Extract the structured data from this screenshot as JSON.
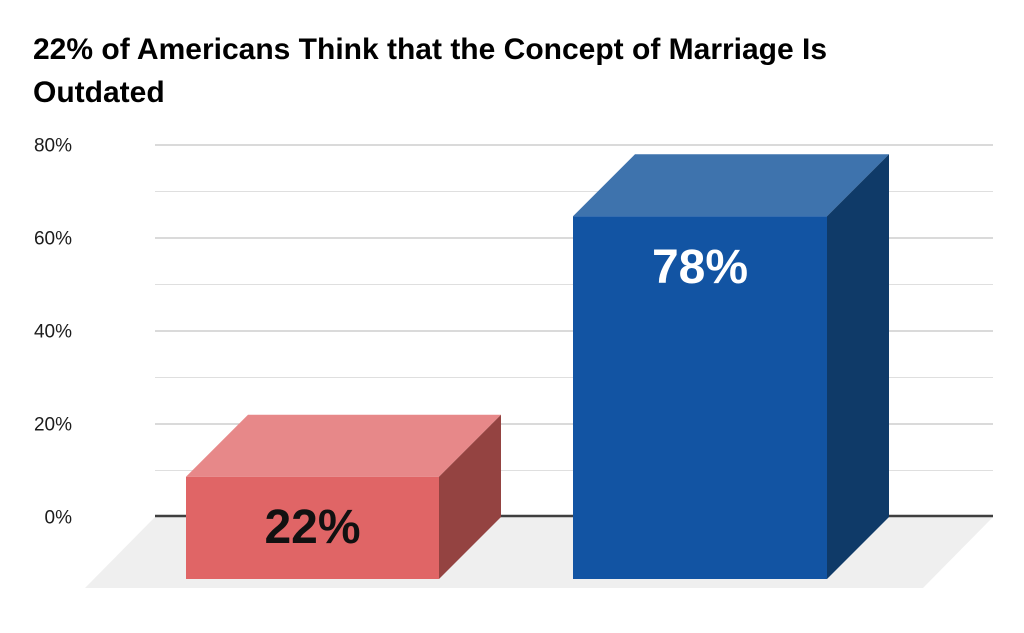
{
  "page": {
    "background": "#ffffff"
  },
  "title": {
    "text": "22% of Americans Think that the Concept of Marriage Is Outdated",
    "line1": "22% of Americans Think that the Concept of Marriage Is",
    "line2": "Outdated"
  },
  "chart_data": {
    "type": "bar",
    "style": "3d-box-columns",
    "title": "22% of Americans Think that the Concept of Marriage Is Outdated",
    "values": [
      22,
      78
    ],
    "bars": [
      {
        "value": 22,
        "label": "22%",
        "front_color": "#e06566",
        "top_color": "#e78889",
        "side_color": "#944341",
        "label_color": "#111111"
      },
      {
        "value": 78,
        "label": "78%",
        "front_color": "#1254a3",
        "top_color": "#3e73ad",
        "side_color": "#0f3a68",
        "label_color": "#ffffff"
      }
    ],
    "xlabel": "",
    "ylabel": "",
    "ylim": [
      0,
      80
    ],
    "y_ticks": [
      {
        "value": 0,
        "label": "0%"
      },
      {
        "value": 20,
        "label": "20%"
      },
      {
        "value": 40,
        "label": "40%"
      },
      {
        "value": 60,
        "label": "60%"
      },
      {
        "value": 80,
        "label": "80%"
      }
    ],
    "minor_grid_step": 10,
    "grid": true,
    "legend": false,
    "colors": {
      "axis_line": "#3f3f3f",
      "major_gridline": "#c3c3c3",
      "minor_gridline": "#dfdfdf",
      "floor": "#efefef",
      "background": "#ffffff",
      "title": "#000000",
      "tick_label": "#1c1c1c"
    }
  }
}
